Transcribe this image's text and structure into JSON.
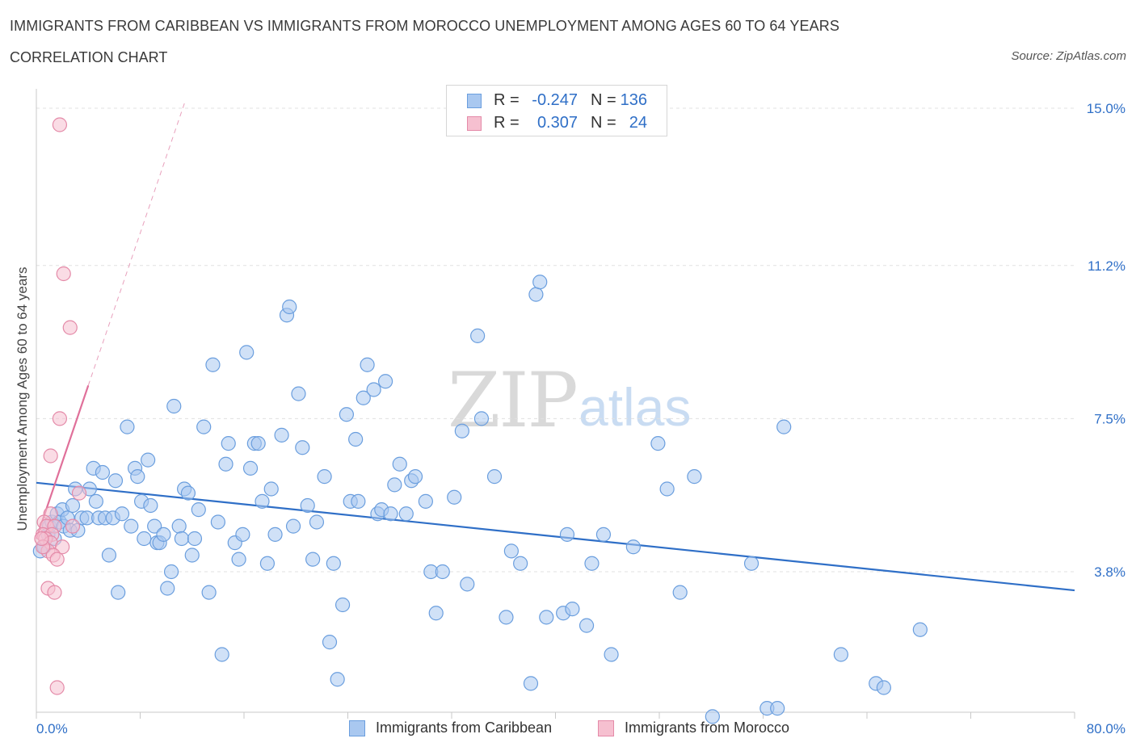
{
  "header": {
    "title": "IMMIGRANTS FROM CARIBBEAN VS IMMIGRANTS FROM MOROCCO UNEMPLOYMENT AMONG AGES 60 TO 64 YEARS",
    "subtitle": "CORRELATION CHART",
    "source": "Source: ZipAtlas.com"
  },
  "watermark": {
    "zip": "ZIP",
    "atlas": "atlas"
  },
  "legend_top": {
    "rows": [
      {
        "r_label": "R =",
        "r_value": "-0.247",
        "n_label": "N =",
        "n_value": "136",
        "color": "#a9c8f0",
        "border": "#6a9ede"
      },
      {
        "r_label": "R =",
        "r_value": "0.307",
        "n_label": "N =",
        "n_value": "24",
        "color": "#f6c0d0",
        "border": "#e48aa8"
      }
    ]
  },
  "legend_bottom": [
    {
      "label": "Immigrants from Caribbean",
      "color": "#a9c8f0",
      "border": "#6a9ede"
    },
    {
      "label": "Immigrants from Morocco",
      "color": "#f6c0d0",
      "border": "#e48aa8"
    }
  ],
  "chart_data": {
    "type": "scatter",
    "title": "IMMIGRANTS FROM CARIBBEAN VS IMMIGRANTS FROM MOROCCO UNEMPLOYMENT AMONG AGES 60 TO 64 YEARS",
    "xlabel": "",
    "ylabel": "Unemployment Among Ages 60 to 64 years",
    "xlim": [
      0,
      80
    ],
    "ylim": [
      0,
      15.5
    ],
    "x_tick_labels": [
      "0.0%",
      "80.0%"
    ],
    "y_ticks": [
      3.8,
      7.5,
      11.2,
      15.0
    ],
    "y_tick_labels": [
      "3.8%",
      "7.5%",
      "11.2%",
      "15.0%"
    ],
    "grid": true,
    "legend": "top-center",
    "series": [
      {
        "name": "Immigrants from Caribbean",
        "color": "#6a9ede",
        "fill": "#a9c8f0",
        "trend": {
          "x": [
            0,
            80
          ],
          "y": [
            5.95,
            3.35
          ]
        },
        "points": [
          [
            0.6,
            4.4
          ],
          [
            0.9,
            4.7
          ],
          [
            1.0,
            4.9
          ],
          [
            1.2,
            5.0
          ],
          [
            1.4,
            4.6
          ],
          [
            1.6,
            5.2
          ],
          [
            1.8,
            5.0
          ],
          [
            2.0,
            5.3
          ],
          [
            2.1,
            4.9
          ],
          [
            2.4,
            5.1
          ],
          [
            2.6,
            4.8
          ],
          [
            2.8,
            5.4
          ],
          [
            3.0,
            5.8
          ],
          [
            3.2,
            4.8
          ],
          [
            3.5,
            5.1
          ],
          [
            3.9,
            5.1
          ],
          [
            4.1,
            5.8
          ],
          [
            4.4,
            6.3
          ],
          [
            4.6,
            5.5
          ],
          [
            4.8,
            5.1
          ],
          [
            5.1,
            6.2
          ],
          [
            5.3,
            5.1
          ],
          [
            5.6,
            4.2
          ],
          [
            5.9,
            5.1
          ],
          [
            6.1,
            6.0
          ],
          [
            6.3,
            3.3
          ],
          [
            6.6,
            5.2
          ],
          [
            7.0,
            7.3
          ],
          [
            7.3,
            4.9
          ],
          [
            7.6,
            6.3
          ],
          [
            7.8,
            6.1
          ],
          [
            8.1,
            5.5
          ],
          [
            8.3,
            4.6
          ],
          [
            8.6,
            6.5
          ],
          [
            8.8,
            5.4
          ],
          [
            9.1,
            4.9
          ],
          [
            9.3,
            4.5
          ],
          [
            9.5,
            4.5
          ],
          [
            9.8,
            4.7
          ],
          [
            10.1,
            3.4
          ],
          [
            10.4,
            3.8
          ],
          [
            10.6,
            7.8
          ],
          [
            11.0,
            4.9
          ],
          [
            11.2,
            4.6
          ],
          [
            11.4,
            5.8
          ],
          [
            11.7,
            5.7
          ],
          [
            12.0,
            4.2
          ],
          [
            12.2,
            4.6
          ],
          [
            12.5,
            5.3
          ],
          [
            12.9,
            7.3
          ],
          [
            13.3,
            3.3
          ],
          [
            13.6,
            8.8
          ],
          [
            14.0,
            5.0
          ],
          [
            14.3,
            1.8
          ],
          [
            14.6,
            6.4
          ],
          [
            14.8,
            6.9
          ],
          [
            15.3,
            4.5
          ],
          [
            15.6,
            4.1
          ],
          [
            15.9,
            4.7
          ],
          [
            16.2,
            9.1
          ],
          [
            16.5,
            6.3
          ],
          [
            16.8,
            6.9
          ],
          [
            17.1,
            6.9
          ],
          [
            17.4,
            5.5
          ],
          [
            17.8,
            4.0
          ],
          [
            18.1,
            5.8
          ],
          [
            18.4,
            4.7
          ],
          [
            18.9,
            7.1
          ],
          [
            19.3,
            10.0
          ],
          [
            19.5,
            10.2
          ],
          [
            19.8,
            4.9
          ],
          [
            20.2,
            8.1
          ],
          [
            20.5,
            6.8
          ],
          [
            20.9,
            5.4
          ],
          [
            21.3,
            4.1
          ],
          [
            21.6,
            5.0
          ],
          [
            22.2,
            6.1
          ],
          [
            22.6,
            2.1
          ],
          [
            22.9,
            4.0
          ],
          [
            23.2,
            1.2
          ],
          [
            23.6,
            3.0
          ],
          [
            23.9,
            7.6
          ],
          [
            24.2,
            5.5
          ],
          [
            24.6,
            7.0
          ],
          [
            24.8,
            5.5
          ],
          [
            25.2,
            8.0
          ],
          [
            25.5,
            8.8
          ],
          [
            26.0,
            8.2
          ],
          [
            26.3,
            5.2
          ],
          [
            26.6,
            5.3
          ],
          [
            26.9,
            8.4
          ],
          [
            27.3,
            5.2
          ],
          [
            27.6,
            5.9
          ],
          [
            28.0,
            6.4
          ],
          [
            28.5,
            5.2
          ],
          [
            28.9,
            6.0
          ],
          [
            29.2,
            6.1
          ],
          [
            30.0,
            5.5
          ],
          [
            30.4,
            3.8
          ],
          [
            30.8,
            2.8
          ],
          [
            31.3,
            3.8
          ],
          [
            32.2,
            5.6
          ],
          [
            32.8,
            7.2
          ],
          [
            33.2,
            3.5
          ],
          [
            34.0,
            9.5
          ],
          [
            34.3,
            7.5
          ],
          [
            35.3,
            6.1
          ],
          [
            36.2,
            2.7
          ],
          [
            36.6,
            4.3
          ],
          [
            37.3,
            4.0
          ],
          [
            38.1,
            1.1
          ],
          [
            38.5,
            10.5
          ],
          [
            38.8,
            10.8
          ],
          [
            39.3,
            2.7
          ],
          [
            40.6,
            2.8
          ],
          [
            40.9,
            4.7
          ],
          [
            41.3,
            2.9
          ],
          [
            42.4,
            2.5
          ],
          [
            42.8,
            4.0
          ],
          [
            43.7,
            4.7
          ],
          [
            44.3,
            1.8
          ],
          [
            46.0,
            4.4
          ],
          [
            47.9,
            6.9
          ],
          [
            48.6,
            5.8
          ],
          [
            49.6,
            3.3
          ],
          [
            50.7,
            6.1
          ],
          [
            52.1,
            0.3
          ],
          [
            55.1,
            4.0
          ],
          [
            56.3,
            0.5
          ],
          [
            57.1,
            0.5
          ],
          [
            57.6,
            7.3
          ],
          [
            62.0,
            1.8
          ],
          [
            64.7,
            1.1
          ],
          [
            65.3,
            1.0
          ],
          [
            68.1,
            2.4
          ],
          [
            0.3,
            4.3
          ]
        ]
      },
      {
        "name": "Immigrants from Morocco",
        "color": "#e48aa8",
        "fill": "#f6c0d0",
        "trend": {
          "x": [
            0.0,
            4.0
          ],
          "y": [
            4.6,
            8.3
          ]
        },
        "trend_extended": {
          "x": [
            4.0,
            11.5
          ],
          "y": [
            8.3,
            15.2
          ]
        },
        "points": [
          [
            1.8,
            14.6
          ],
          [
            2.1,
            11.0
          ],
          [
            2.6,
            9.7
          ],
          [
            1.8,
            7.5
          ],
          [
            1.1,
            6.6
          ],
          [
            3.3,
            5.7
          ],
          [
            1.1,
            5.2
          ],
          [
            0.6,
            5.0
          ],
          [
            0.8,
            4.9
          ],
          [
            1.4,
            4.9
          ],
          [
            0.5,
            4.7
          ],
          [
            1.2,
            4.7
          ],
          [
            0.7,
            4.6
          ],
          [
            2.8,
            4.9
          ],
          [
            1.1,
            4.5
          ],
          [
            2.0,
            4.4
          ],
          [
            0.9,
            4.3
          ],
          [
            1.3,
            4.2
          ],
          [
            0.5,
            4.4
          ],
          [
            1.6,
            4.1
          ],
          [
            0.9,
            3.4
          ],
          [
            1.4,
            3.3
          ],
          [
            1.6,
            1.0
          ],
          [
            0.4,
            4.6
          ]
        ]
      }
    ]
  }
}
